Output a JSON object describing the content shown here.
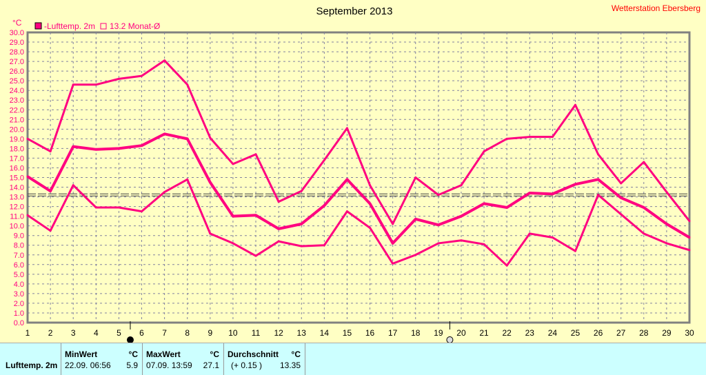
{
  "chart_data": {
    "type": "line",
    "title": "September 2013",
    "station": "Wetterstation Ebersberg",
    "ylabel": "°C",
    "ylim": [
      0,
      30
    ],
    "xlim": [
      1,
      30
    ],
    "x": [
      1,
      2,
      3,
      4,
      5,
      6,
      7,
      8,
      9,
      10,
      11,
      12,
      13,
      14,
      15,
      16,
      17,
      18,
      19,
      20,
      21,
      22,
      23,
      24,
      25,
      26,
      27,
      28,
      29,
      30
    ],
    "yticks": [
      "0.0",
      "1.0",
      "2.0",
      "3.0",
      "4.0",
      "5.0",
      "6.0",
      "7.0",
      "8.0",
      "9.0",
      "10.0",
      "11.0",
      "12.0",
      "13.0",
      "14.0",
      "15.0",
      "16.0",
      "17.0",
      "18.0",
      "19.0",
      "20.0",
      "21.0",
      "22.0",
      "23.0",
      "24.0",
      "25.0",
      "26.0",
      "27.0",
      "28.0",
      "29.0",
      "30.0"
    ],
    "legend": [
      {
        "label": "-Lufttemp. 2m",
        "color": "#ff0080",
        "filled": true
      },
      {
        "label": "13.2 Monat-Ø",
        "color": "#ff0080",
        "filled": false
      }
    ],
    "monthly_mean": 13.2,
    "moon_phases": [
      {
        "day": 5.5,
        "phase": "full"
      },
      {
        "day": 19.5,
        "phase": "new"
      }
    ],
    "series": [
      {
        "name": "Max",
        "values": [
          19.0,
          17.7,
          24.6,
          24.6,
          25.2,
          25.5,
          27.1,
          24.6,
          19.1,
          16.4,
          17.4,
          12.5,
          13.6,
          16.8,
          20.1,
          14.2,
          10.2,
          15.0,
          13.2,
          14.2,
          17.7,
          19.0,
          19.2,
          19.2,
          22.5,
          17.4,
          14.4,
          16.6,
          13.5,
          10.5
        ]
      },
      {
        "name": "Mittel",
        "values": [
          15.1,
          13.6,
          18.2,
          17.9,
          18.0,
          18.3,
          19.5,
          19.0,
          14.5,
          11.0,
          11.1,
          9.7,
          10.2,
          12.1,
          14.8,
          12.3,
          8.2,
          10.7,
          10.1,
          11.0,
          12.3,
          11.9,
          13.4,
          13.3,
          14.3,
          14.8,
          12.9,
          11.9,
          10.2,
          8.8
        ]
      },
      {
        "name": "Min",
        "values": [
          11.1,
          9.5,
          14.2,
          11.9,
          11.9,
          11.5,
          13.5,
          14.8,
          9.2,
          8.2,
          6.9,
          8.4,
          7.9,
          8.0,
          11.5,
          9.8,
          6.1,
          7.0,
          8.2,
          8.5,
          8.1,
          5.9,
          9.2,
          8.8,
          7.4,
          13.2,
          11.2,
          9.2,
          8.2,
          7.5
        ]
      }
    ],
    "colors": {
      "line": "#ff0080",
      "grid": "#8080a0",
      "axis": "#808080",
      "title": "#000000",
      "station": "#ff0000"
    }
  },
  "stats": {
    "row_label": "Lufttemp. 2m",
    "min": {
      "header": "MinWert",
      "unit": "°C",
      "date": "22.09.  06:56",
      "value": "5.9"
    },
    "max": {
      "header": "MaxWert",
      "unit": "°C",
      "date": "07.09.  13:59",
      "value": "27.1"
    },
    "avg": {
      "header": "Durchschnitt",
      "unit": "°C",
      "delta": "(+ 0.15 )",
      "value": "13.35"
    }
  }
}
